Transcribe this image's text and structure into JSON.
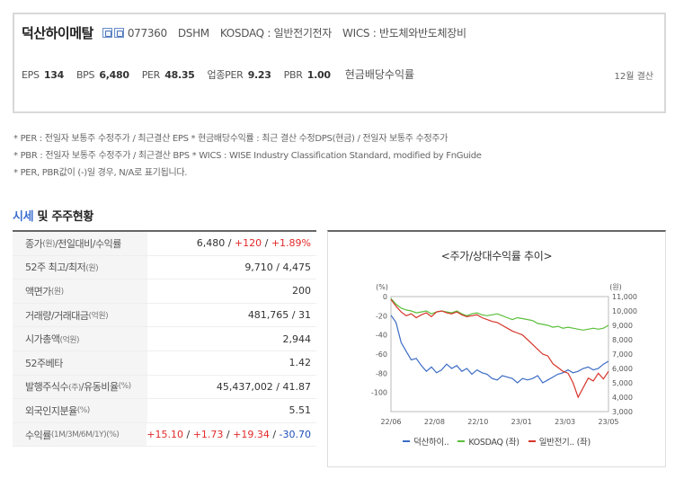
{
  "header": {
    "corp_name": "덕산하이메탈",
    "code": "077360",
    "eng_code": "DSHM",
    "market": "KOSDAQ : 일반전기전자",
    "wics": "WICS : 반도체와반도체장비"
  },
  "stats": [
    {
      "label": "EPS",
      "value": "134"
    },
    {
      "label": "BPS",
      "value": "6,480"
    },
    {
      "label": "PER",
      "value": "48.35"
    },
    {
      "label": "업종PER",
      "value": "9.23"
    },
    {
      "label": "PBR",
      "value": "1.00"
    }
  ],
  "stats_last": "현금배당수익률",
  "settlement": "12월 결산",
  "notes": [
    "* PER : 전일자 보통주 수정주가 / 최근결산 EPS * 현금배당수익률 : 최근 결산 수정DPS(현금) / 전일자 보통주 수정주가",
    "* PBR : 전일자 보통주 수정주가 / 최근결산 BPS * WICS : WISE Industry Classification Standard, modified by FnGuide",
    "* PER, PBR값이 (-)일 경우, N/A로 표기됩니다."
  ],
  "section": {
    "accent": "시세",
    "rest": " 및 주주현황"
  },
  "table": [
    {
      "label": "종가",
      "unit": "(원)",
      "label2": "/전일대비/수익률",
      "value": "6,480 / ",
      "up1": "+120",
      "sep": " / ",
      "up2": "+1.89%"
    },
    {
      "label": "52주 최고/최저",
      "unit": "(원)",
      "label2": "",
      "value": "9,710 / 4,475"
    },
    {
      "label": "액면가",
      "unit": "(원)",
      "label2": "",
      "value": "200"
    },
    {
      "label": "거래량/거래대금",
      "unit": "(억원)",
      "label2": "",
      "value": "481,765 / 31"
    },
    {
      "label": "시가총액",
      "unit": "(억원)",
      "label2": "",
      "value": "2,944"
    },
    {
      "label": "52주베타",
      "unit": "",
      "label2": "",
      "value": "1.42"
    },
    {
      "label": "발행주식수",
      "unit": "(주)",
      "label2": "/유동비율",
      "unit2": "(%)",
      "value": "45,437,002 / 41.87"
    },
    {
      "label": "외국인지분율",
      "unit": "(%)",
      "label2": "",
      "value": "5.51"
    },
    {
      "label": "수익률",
      "unit": "(1M/3M/6M/1Y)(%)",
      "label2": "",
      "r1": "+15.10",
      "r2": "+1.73",
      "r3": "+19.34",
      "r4": "-30.70"
    }
  ],
  "chart_data": {
    "type": "line",
    "title": "<주가/상대수익률 추이>",
    "left_unit": "(%)",
    "right_unit": "(원)",
    "left_ticks": [
      "0",
      "-20",
      "-40",
      "-60",
      "-80",
      "-100"
    ],
    "right_ticks": [
      "11,000",
      "10,000",
      "9,000",
      "8,000",
      "7,000",
      "6,000",
      "5,000",
      "4,000",
      "3,000"
    ],
    "x_ticks": [
      "22/06",
      "22/08",
      "22/10",
      "23/01",
      "23/03",
      "23/05"
    ],
    "ylim_left": [
      -120,
      0
    ],
    "ylim_right": [
      3000,
      11000
    ],
    "series": [
      {
        "name": "덕산하이..",
        "axis": "right",
        "color": "#3c6cc4",
        "values": [
          9700,
          9200,
          7800,
          7200,
          6600,
          6700,
          6200,
          5800,
          6100,
          5700,
          5900,
          6300,
          6000,
          6200,
          5800,
          6000,
          5600,
          5900,
          5700,
          5600,
          5300,
          5200,
          5500,
          5400,
          5300,
          5000,
          5300,
          5200,
          5300,
          5500,
          5000,
          5200,
          5400,
          5600,
          5700,
          5900,
          5700,
          5800,
          6000,
          6100,
          5900,
          6000,
          6300,
          6500
        ]
      },
      {
        "name": "KOSDAQ (좌)",
        "axis": "left",
        "color": "#5bbf3a",
        "values": [
          -2,
          -8,
          -12,
          -14,
          -15,
          -17,
          -16,
          -15,
          -18,
          -16,
          -15,
          -16,
          -17,
          -15,
          -18,
          -20,
          -18,
          -17,
          -19,
          -20,
          -19,
          -18,
          -20,
          -22,
          -24,
          -22,
          -23,
          -24,
          -25,
          -28,
          -29,
          -30,
          -32,
          -31,
          -33,
          -32,
          -33,
          -34,
          -35,
          -34,
          -33,
          -34,
          -33,
          -30
        ]
      },
      {
        "name": "일반전기.. (좌)",
        "axis": "left",
        "color": "#d6362b",
        "values": [
          -3,
          -10,
          -16,
          -20,
          -18,
          -22,
          -19,
          -17,
          -21,
          -16,
          -15,
          -17,
          -18,
          -16,
          -19,
          -21,
          -20,
          -19,
          -22,
          -24,
          -26,
          -27,
          -30,
          -33,
          -36,
          -38,
          -40,
          -45,
          -50,
          -55,
          -60,
          -62,
          -70,
          -74,
          -78,
          -80,
          -90,
          -105,
          -95,
          -85,
          -88,
          -80,
          -86,
          -78
        ]
      }
    ]
  }
}
